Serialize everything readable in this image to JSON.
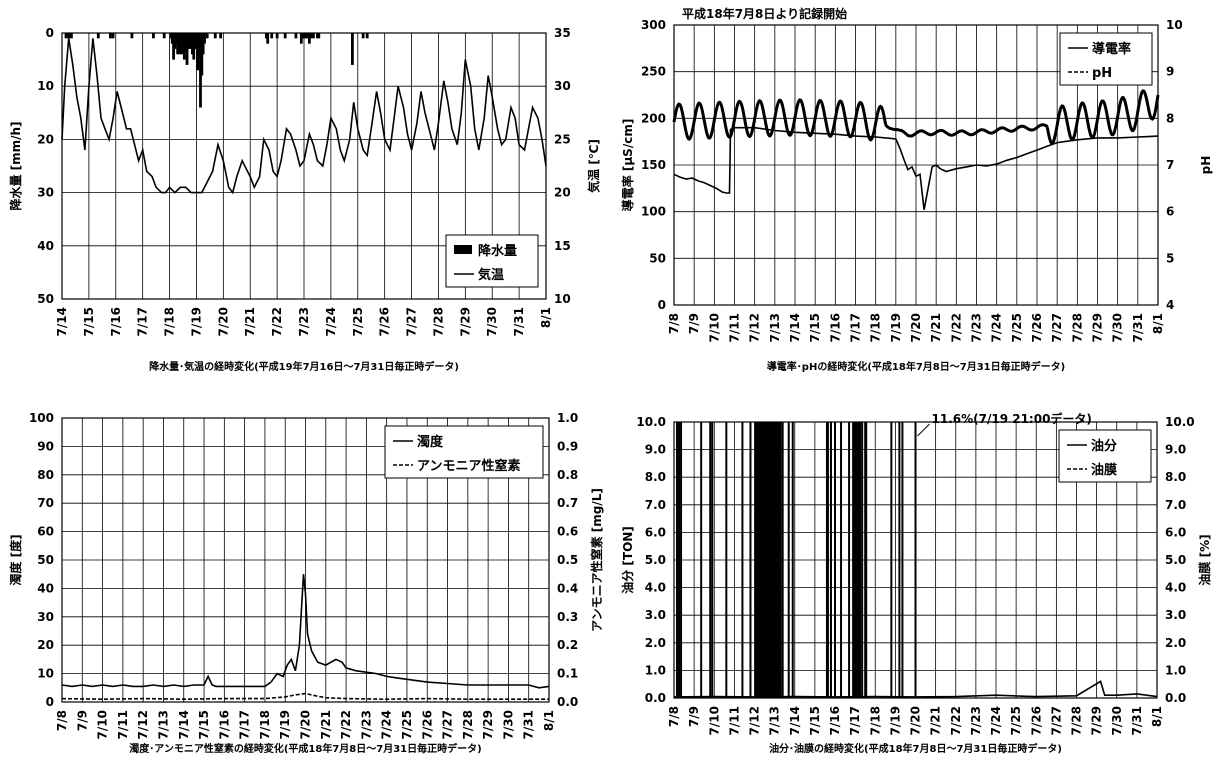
{
  "chart_data": [
    {
      "type": "line",
      "caption": "降水量･気温の経時変化(平成19年7月16日～7月31日毎正時データ)",
      "x_ticks": [
        "7/14",
        "7/15",
        "7/16",
        "7/17",
        "7/18",
        "7/19",
        "7/20",
        "7/21",
        "7/22",
        "7/23",
        "7/24",
        "7/25",
        "7/26",
        "7/27",
        "7/28",
        "7/29",
        "7/30",
        "7/31",
        "8/1"
      ],
      "y_left": {
        "label": "降水量 [mm/h]",
        "min": 0,
        "max": 50,
        "ticks": [
          "0",
          "10",
          "20",
          "30",
          "40",
          "50"
        ],
        "reversed": true
      },
      "y_right": {
        "label": "気温 [℃]",
        "min": 10,
        "max": 35,
        "ticks": [
          "10",
          "15",
          "20",
          "25",
          "30",
          "35"
        ]
      },
      "legend": {
        "position": "bottom-right",
        "items": [
          {
            "label": "降水量",
            "style": "bar"
          },
          {
            "label": "気温",
            "style": "line"
          }
        ]
      },
      "series": [
        {
          "name": "降水量",
          "axis": "left",
          "kind": "bar",
          "x": [
            0.15,
            0.25,
            0.35,
            1.35,
            1.8,
            1.9,
            2.6,
            3.4,
            3.8,
            4.05,
            4.1,
            4.15,
            4.2,
            4.25,
            4.3,
            4.35,
            4.4,
            4.45,
            4.5,
            4.55,
            4.6,
            4.65,
            4.7,
            4.75,
            4.8,
            4.85,
            4.9,
            4.95,
            5.0,
            5.05,
            5.1,
            5.15,
            5.2,
            5.25,
            5.3,
            5.4,
            5.7,
            5.9,
            7.6,
            7.65,
            7.8,
            8.0,
            8.3,
            8.7,
            8.9,
            8.95,
            9.0,
            9.05,
            9.1,
            9.15,
            9.2,
            9.25,
            9.35,
            9.5,
            9.55,
            10.8,
            11.2,
            11.35
          ],
          "values": [
            1,
            1,
            1,
            1,
            1,
            1,
            1,
            1,
            1,
            1,
            2,
            5,
            3,
            2,
            4,
            3,
            4,
            4,
            2,
            5,
            3,
            6,
            2,
            3,
            1,
            4,
            5,
            3,
            2,
            7,
            4,
            14,
            8,
            4,
            2,
            1,
            1,
            1,
            1,
            2,
            1,
            1,
            1,
            1,
            2,
            1,
            1,
            1,
            1,
            1,
            2,
            1,
            1,
            1,
            1,
            6,
            1,
            1
          ]
        },
        {
          "name": "気温",
          "axis": "right",
          "kind": "line",
          "x": [
            0,
            0.1,
            0.25,
            0.4,
            0.55,
            0.7,
            0.85,
            1.0,
            1.15,
            1.3,
            1.45,
            1.6,
            1.75,
            1.9,
            2.05,
            2.2,
            2.4,
            2.55,
            2.7,
            2.85,
            3.0,
            3.15,
            3.35,
            3.5,
            3.7,
            3.85,
            4.0,
            4.2,
            4.4,
            4.6,
            4.8,
            5.0,
            5.2,
            5.4,
            5.6,
            5.8,
            6.0,
            6.2,
            6.35,
            6.5,
            6.7,
            6.9,
            7.0,
            7.15,
            7.35,
            7.5,
            7.7,
            7.85,
            8.0,
            8.15,
            8.35,
            8.5,
            8.7,
            8.85,
            9.0,
            9.2,
            9.35,
            9.5,
            9.7,
            9.85,
            10.0,
            10.2,
            10.35,
            10.5,
            10.7,
            10.85,
            11.0,
            11.2,
            11.35,
            11.5,
            11.7,
            11.85,
            12.0,
            12.2,
            12.35,
            12.5,
            12.7,
            12.85,
            13.0,
            13.2,
            13.35,
            13.5,
            13.7,
            13.85,
            14.0,
            14.2,
            14.35,
            14.5,
            14.7,
            14.85,
            15.0,
            15.2,
            15.35,
            15.5,
            15.7,
            15.85,
            16.0,
            16.2,
            16.35,
            16.5,
            16.7,
            16.85,
            17.0,
            17.2,
            17.35,
            17.5,
            17.7,
            17.85,
            18.0
          ],
          "values": [
            25,
            30,
            34.5,
            32,
            29,
            27,
            24,
            30,
            34.5,
            31,
            27,
            26,
            25,
            27,
            29.5,
            28,
            26,
            26,
            24.5,
            23,
            24,
            22,
            21.5,
            20.5,
            20,
            20,
            20.5,
            20,
            20.5,
            20.5,
            20,
            20,
            20,
            21,
            22,
            24.5,
            23,
            20.5,
            20,
            21.5,
            23,
            22,
            21.5,
            20.5,
            21.5,
            25,
            24,
            22,
            21.5,
            23,
            26,
            25.5,
            24,
            22.5,
            23,
            25.5,
            24.5,
            23,
            22.5,
            24.5,
            27,
            26,
            24,
            23,
            25,
            28.5,
            26,
            24,
            23.5,
            26,
            29.5,
            27.5,
            25,
            24,
            27,
            30,
            28,
            25.5,
            24,
            26.5,
            29.5,
            27.5,
            25.5,
            24,
            26.5,
            30.5,
            28.5,
            26,
            24.5,
            27.5,
            32.5,
            30,
            26,
            24,
            27,
            31,
            29,
            26,
            24.5,
            25,
            28,
            27,
            24.5,
            24,
            26,
            28,
            27,
            25,
            22.5
          ]
        }
      ]
    },
    {
      "type": "line",
      "title": "平成18年7月8日より記録開始",
      "caption": "導電率･pHの経時変化(平成18年7月8日～7月31日毎正時データ)",
      "x_ticks": [
        "7/8",
        "7/9",
        "7/10",
        "7/11",
        "7/12",
        "7/13",
        "7/14",
        "7/15",
        "7/16",
        "7/17",
        "7/18",
        "7/19",
        "7/20",
        "7/21",
        "7/22",
        "7/23",
        "7/24",
        "7/25",
        "7/26",
        "7/27",
        "7/28",
        "7/29",
        "7/30",
        "7/31",
        "8/1"
      ],
      "y_left": {
        "label": "導電率 [μS/cm]",
        "min": 0,
        "max": 300,
        "ticks": [
          "0",
          "50",
          "100",
          "150",
          "200",
          "250",
          "300"
        ]
      },
      "y_right": {
        "label": "pH",
        "min": 4,
        "max": 10,
        "ticks": [
          "4",
          "5",
          "6",
          "7",
          "8",
          "9",
          "10"
        ]
      },
      "legend": {
        "position": "top-right",
        "items": [
          {
            "label": "導電率",
            "style": "line"
          },
          {
            "label": "pH",
            "style": "dash"
          }
        ]
      },
      "series": [
        {
          "name": "導電率",
          "axis": "left",
          "kind": "line",
          "x": [
            0,
            0.3,
            0.6,
            0.9,
            1.2,
            1.5,
            1.8,
            2.1,
            2.4,
            2.6,
            2.75,
            2.8,
            3.0,
            4,
            5,
            6,
            7,
            8,
            9,
            10,
            11,
            11.2,
            11.4,
            11.6,
            11.8,
            12.0,
            12.2,
            12.4,
            12.6,
            12.8,
            13.0,
            13.2,
            13.5,
            14,
            14.5,
            15,
            15.5,
            16,
            16.5,
            17,
            17.5,
            18,
            18.5,
            19,
            20,
            21,
            22,
            23,
            24
          ],
          "values": [
            140,
            137,
            135,
            136,
            133,
            131,
            128,
            125,
            121,
            120,
            120,
            188,
            190,
            190,
            187,
            185,
            184,
            183,
            181,
            180,
            178,
            168,
            156,
            145,
            148,
            138,
            140,
            102,
            125,
            148,
            150,
            146,
            143,
            146,
            148,
            150,
            149,
            151,
            155,
            158,
            162,
            166,
            170,
            174,
            177,
            179,
            179,
            180,
            181
          ]
        },
        {
          "name": "pH",
          "axis": "right",
          "kind": "oscillation",
          "base": 7.88,
          "amplitude": 0.38,
          "period_days": 1,
          "x": [
            0,
            3,
            6,
            9,
            10,
            10.8,
            11.2,
            11.6,
            12,
            13,
            14,
            15,
            16,
            17,
            18,
            19,
            19.4,
            20,
            21,
            22,
            23,
            23.6,
            24
          ],
          "values": [
            7.92,
            7.98,
            8.02,
            7.98,
            7.9,
            7.82,
            7.7,
            7.66,
            7.68,
            7.7,
            7.68,
            7.7,
            7.74,
            7.78,
            7.8,
            7.86,
            7.9,
            7.94,
            7.98,
            8.04,
            8.14,
            8.3,
            8.5
          ]
        }
      ]
    },
    {
      "type": "line",
      "caption": "濁度･アンモニア性窒素の経時変化(平成18年7月8日～7月31日毎正時データ)",
      "x_ticks": [
        "7/8",
        "7/9",
        "7/10",
        "7/11",
        "7/12",
        "7/13",
        "7/14",
        "7/15",
        "7/16",
        "7/17",
        "7/18",
        "7/19",
        "7/20",
        "7/21",
        "7/22",
        "7/23",
        "7/24",
        "7/25",
        "7/26",
        "7/27",
        "7/28",
        "7/29",
        "7/30",
        "7/31",
        "8/1"
      ],
      "y_left": {
        "label": "濁度 [度]",
        "min": 0,
        "max": 100,
        "ticks": [
          "0",
          "10",
          "20",
          "30",
          "40",
          "50",
          "60",
          "70",
          "80",
          "90",
          "100"
        ]
      },
      "y_right": {
        "label": "アンモニア性窒素 [mg/L]",
        "min": 0,
        "max": 1.0,
        "ticks": [
          "0.0",
          "0.1",
          "0.2",
          "0.3",
          "0.4",
          "0.5",
          "0.6",
          "0.7",
          "0.8",
          "0.9",
          "1.0"
        ]
      },
      "legend": {
        "position": "top-right",
        "items": [
          {
            "label": "濁度",
            "style": "line"
          },
          {
            "label": "アンモニア性窒素",
            "style": "dash"
          }
        ]
      },
      "series": [
        {
          "name": "濁度",
          "axis": "left",
          "kind": "line",
          "x": [
            0,
            0.5,
            1,
            1.5,
            2,
            2.5,
            3,
            3.5,
            4,
            4.5,
            5,
            5.5,
            6,
            6.5,
            7,
            7.2,
            7.4,
            7.6,
            8,
            8.5,
            9,
            9.5,
            10,
            10.3,
            10.6,
            10.9,
            11.1,
            11.3,
            11.5,
            11.7,
            11.9,
            12.0,
            12.1,
            12.3,
            12.6,
            13,
            13.5,
            13.8,
            14,
            14.5,
            15,
            15.5,
            16,
            16.5,
            17,
            17.5,
            18,
            19,
            20,
            21,
            22,
            23,
            23.5,
            24
          ],
          "values": [
            6,
            5.5,
            6,
            5.5,
            6,
            5.5,
            6,
            5.5,
            5.5,
            6,
            5.5,
            6,
            5.5,
            6,
            6,
            9,
            6,
            5.5,
            5.5,
            5.5,
            5.5,
            5.5,
            5.5,
            7,
            10,
            9,
            13,
            15,
            11,
            20,
            45,
            38,
            24,
            18,
            14,
            13,
            15,
            14,
            12,
            11,
            10.5,
            10,
            9,
            8.5,
            8,
            7.5,
            7,
            6.5,
            6,
            6,
            6,
            6,
            5,
            5.5
          ]
        },
        {
          "name": "アンモニア性窒素",
          "axis": "right",
          "kind": "line",
          "x": [
            0,
            2,
            4,
            6,
            8,
            10,
            11,
            11.5,
            12,
            12.5,
            13,
            14,
            16,
            18,
            20,
            22,
            24
          ],
          "values": [
            0.012,
            0.01,
            0.012,
            0.01,
            0.012,
            0.012,
            0.018,
            0.025,
            0.03,
            0.022,
            0.015,
            0.012,
            0.01,
            0.012,
            0.01,
            0.01,
            0.01
          ]
        }
      ]
    },
    {
      "type": "line",
      "caption": "油分･油膜の経時変化(平成18年7月8日～7月31日毎正時データ)",
      "annotation": "11.6%(7/19 21:00データ)",
      "x_ticks": [
        "7/8",
        "7/9",
        "7/10",
        "7/11",
        "7/12",
        "7/13",
        "7/14",
        "7/15",
        "7/16",
        "7/17",
        "7/18",
        "7/19",
        "7/20",
        "7/21",
        "7/22",
        "7/23",
        "7/24",
        "7/25",
        "7/26",
        "7/27",
        "7/28",
        "7/29",
        "7/30",
        "7/31",
        "8/1"
      ],
      "y_left": {
        "label": "油分 [TON]",
        "min": 0,
        "max": 10,
        "ticks": [
          "0.0",
          "1.0",
          "2.0",
          "3.0",
          "4.0",
          "5.0",
          "6.0",
          "7.0",
          "8.0",
          "9.0",
          "10.0"
        ]
      },
      "y_right": {
        "label": "油膜 [%]",
        "min": 0,
        "max": 10,
        "ticks": [
          "0.0",
          "1.0",
          "2.0",
          "3.0",
          "4.0",
          "5.0",
          "6.0",
          "7.0",
          "8.0",
          "9.0",
          "10.0"
        ]
      },
      "legend": {
        "position": "top-right",
        "items": [
          {
            "label": "油分",
            "style": "line"
          },
          {
            "label": "油膜",
            "style": "dash"
          }
        ]
      },
      "series": [
        {
          "name": "油分",
          "axis": "left",
          "kind": "line",
          "x": [
            0,
            2,
            4,
            6,
            8,
            10,
            12,
            14,
            16,
            17.5,
            18,
            20,
            21.2,
            21.4,
            22,
            23,
            24
          ],
          "values": [
            0.04,
            0.05,
            0.04,
            0.05,
            0.04,
            0.05,
            0.04,
            0.05,
            0.1,
            0.06,
            0.05,
            0.08,
            0.6,
            0.1,
            0.1,
            0.15,
            0.05
          ]
        },
        {
          "name": "油膜",
          "axis": "right",
          "kind": "spikes",
          "x": [
            0.15,
            0.25,
            0.35,
            1.35,
            1.8,
            1.9,
            2.6,
            3.4,
            3.8,
            4.05,
            4.1,
            4.15,
            4.2,
            4.25,
            4.3,
            4.35,
            4.4,
            4.45,
            4.5,
            4.55,
            4.6,
            4.65,
            4.7,
            4.75,
            4.8,
            4.85,
            4.9,
            4.95,
            5.0,
            5.05,
            5.1,
            5.15,
            5.2,
            5.25,
            5.3,
            5.4,
            5.7,
            5.9,
            7.6,
            7.65,
            7.8,
            8.0,
            8.3,
            8.7,
            8.9,
            8.95,
            9.0,
            9.05,
            9.1,
            9.15,
            9.2,
            9.25,
            9.35,
            9.5,
            9.55,
            10.8,
            11.2,
            11.35
          ],
          "values": [
            10,
            10,
            10,
            10,
            10,
            10,
            10,
            10,
            10,
            10,
            10,
            10,
            10,
            10,
            10,
            10,
            10,
            10,
            10,
            10,
            10,
            10,
            10,
            10,
            10,
            10,
            10,
            10,
            10,
            10,
            10,
            10,
            10,
            10,
            10,
            10,
            10,
            10,
            10,
            10,
            10,
            10,
            10,
            10,
            10,
            10,
            10,
            10,
            10,
            10,
            10,
            10,
            10,
            10,
            10,
            10,
            10,
            10
          ]
        }
      ]
    }
  ]
}
